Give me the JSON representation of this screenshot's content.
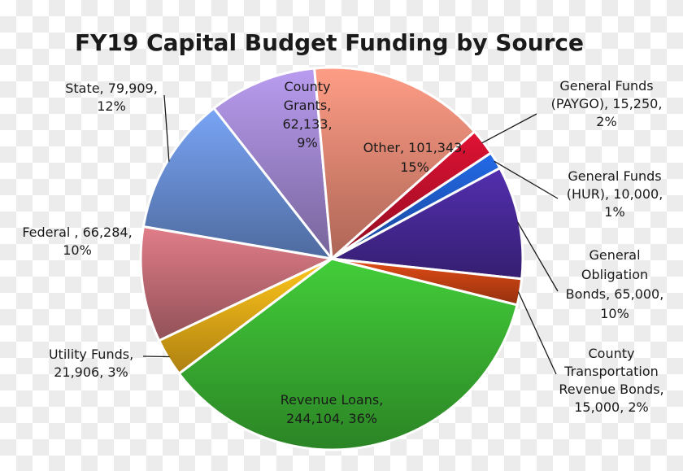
{
  "chart_data": {
    "type": "pie",
    "title": "FY19 Capital Budget Funding by Source",
    "slices": [
      {
        "name": "Revenue Loans",
        "value": 244104,
        "percent": 36,
        "label": [
          "Revenue Loans,",
          "244,104, 36%"
        ],
        "color": "#3cb834"
      },
      {
        "name": "Utility Funds",
        "value": 21906,
        "percent": 3,
        "label": [
          "Utility Funds,",
          "21,906, 3%"
        ],
        "color": "#f2b218"
      },
      {
        "name": "Federal",
        "value": 66284,
        "percent": 10,
        "label": [
          "Federal , 66,284,",
          "10%"
        ],
        "color": "#c9707a"
      },
      {
        "name": "State",
        "value": 79909,
        "percent": 12,
        "label": [
          "State, 79,909,",
          "12%"
        ],
        "color": "#6c93dc"
      },
      {
        "name": "County Grants",
        "value": 62133,
        "percent": 9,
        "label": [
          "County",
          "Grants,",
          "62,133,",
          "9%"
        ],
        "color": "#a58bd6"
      },
      {
        "name": "Other",
        "value": 101343,
        "percent": 15,
        "label": [
          "Other, 101,343,",
          "15%"
        ],
        "color": "#f08c78"
      },
      {
        "name": "General Funds (PAYGO)",
        "value": 15250,
        "percent": 2,
        "label": [
          "General Funds",
          "(PAYGO), 15,250,",
          "2%"
        ],
        "color": "#c8102e"
      },
      {
        "name": "General Funds (HUR)",
        "value": 10000,
        "percent": 1,
        "label": [
          "General Funds",
          "(HUR), 10,000,",
          "1%"
        ],
        "color": "#1f5fcf"
      },
      {
        "name": "General Obligation Bonds",
        "value": 65000,
        "percent": 10,
        "label": [
          "General",
          "Obligation",
          "Bonds, 65,000,",
          "10%"
        ],
        "color": "#4a2a9c"
      },
      {
        "name": "County Transportation Revenue Bonds",
        "value": 15000,
        "percent": 2,
        "label": [
          "County",
          "Transportation",
          "Revenue Bonds,",
          "15,000, 2%"
        ],
        "color": "#cc4414"
      }
    ]
  }
}
